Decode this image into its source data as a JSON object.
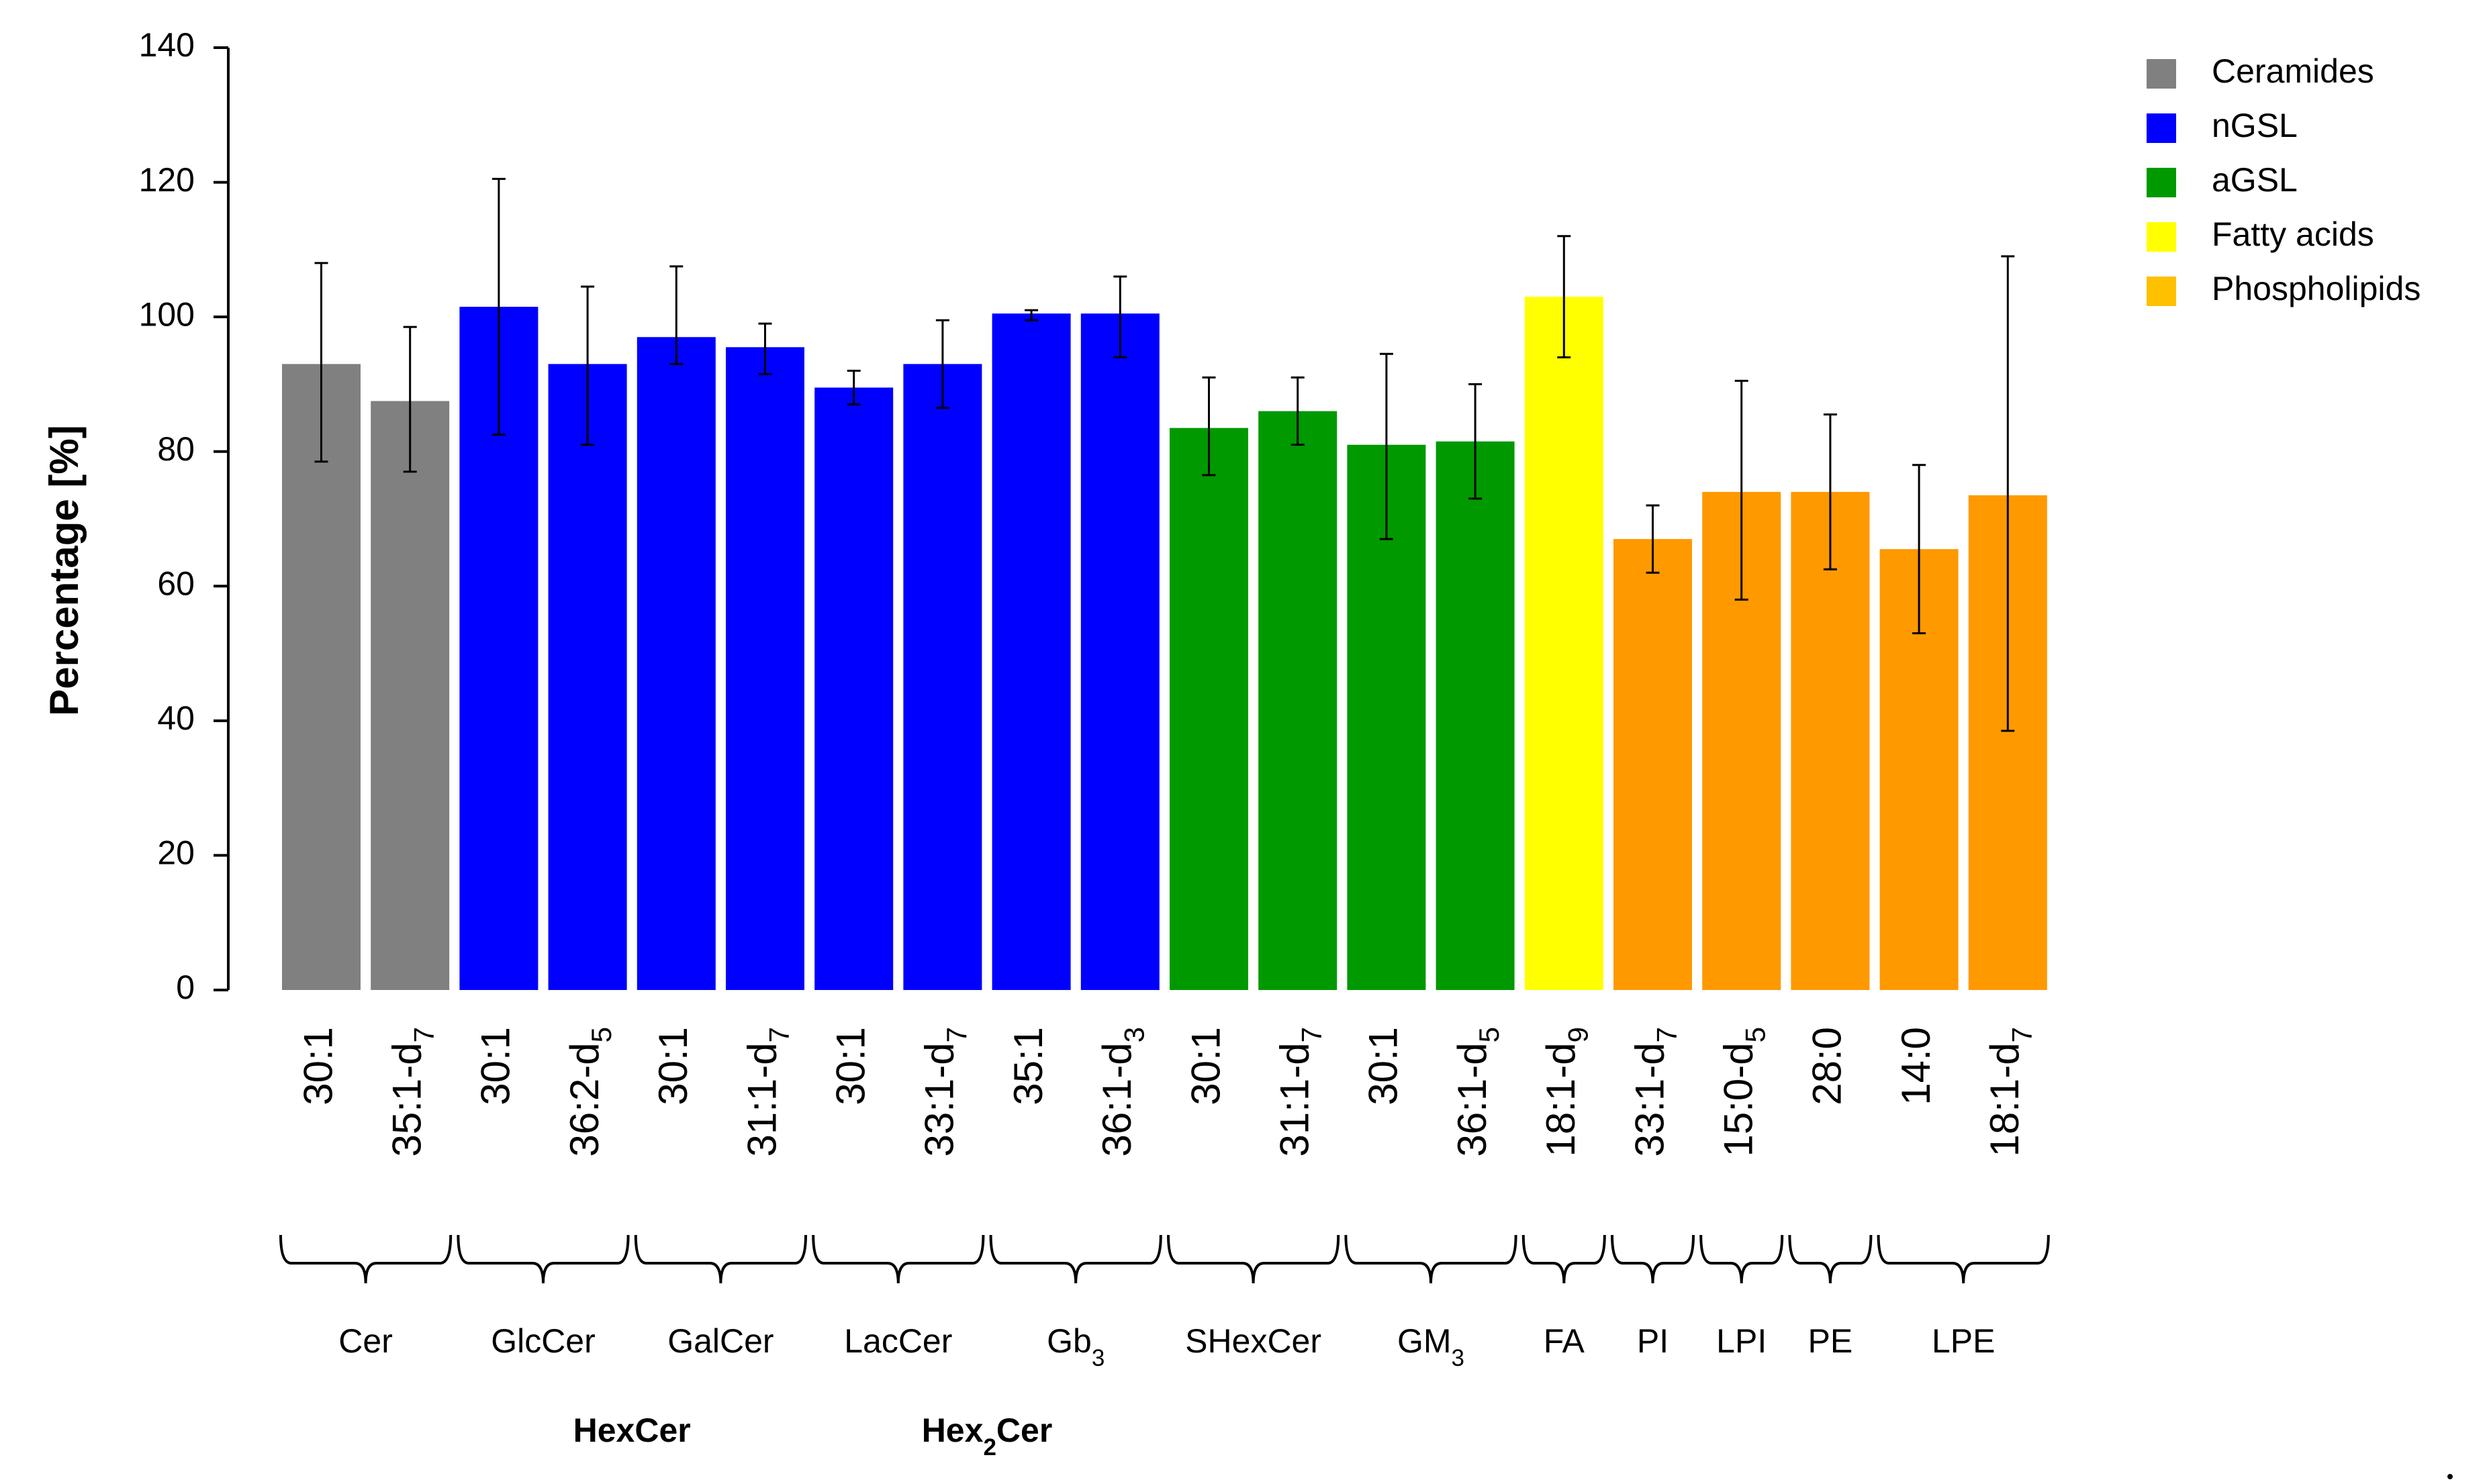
{
  "chart_data": {
    "type": "bar",
    "title": "",
    "xlabel": "",
    "ylabel": "Percentage [%]",
    "ylim": [
      0,
      140
    ],
    "yticks": [
      0,
      20,
      40,
      60,
      80,
      100,
      120,
      140
    ],
    "grid": false,
    "legend_position": "top-right",
    "legend": [
      {
        "label": "Ceramides",
        "color": "#808080"
      },
      {
        "label": "nGSL",
        "color": "#0000FF"
      },
      {
        "label": "aGSL",
        "color": "#009900"
      },
      {
        "label": "Fatty acids",
        "color": "#FFFF00"
      },
      {
        "label": "Phospholipids",
        "color": "#FFC000"
      }
    ],
    "bars": [
      {
        "label": "30:1",
        "sub": "",
        "value": 93,
        "err_low": 78.5,
        "err_high": 108,
        "class": "Ceramides",
        "color": "#808080"
      },
      {
        "label": "35:1-d",
        "sub": "7",
        "value": 87.5,
        "err_low": 77,
        "err_high": 98.5,
        "class": "Ceramides",
        "color": "#808080"
      },
      {
        "label": "30:1",
        "sub": "",
        "value": 101.5,
        "err_low": 82.5,
        "err_high": 120.5,
        "class": "nGSL",
        "color": "#0000FF"
      },
      {
        "label": "36:2-d",
        "sub": "5",
        "value": 93,
        "err_low": 81,
        "err_high": 104.5,
        "class": "nGSL",
        "color": "#0000FF"
      },
      {
        "label": "30:1",
        "sub": "",
        "value": 97,
        "err_low": 93,
        "err_high": 107.5,
        "class": "nGSL",
        "color": "#0000FF"
      },
      {
        "label": "31:1-d",
        "sub": "7",
        "value": 95.5,
        "err_low": 91.5,
        "err_high": 99,
        "class": "nGSL",
        "color": "#0000FF"
      },
      {
        "label": "30:1",
        "sub": "",
        "value": 89.5,
        "err_low": 87,
        "err_high": 92,
        "class": "nGSL",
        "color": "#0000FF"
      },
      {
        "label": "33:1-d",
        "sub": "7",
        "value": 93,
        "err_low": 86.5,
        "err_high": 99.5,
        "class": "nGSL",
        "color": "#0000FF"
      },
      {
        "label": "35:1",
        "sub": "",
        "value": 100.5,
        "err_low": 99.5,
        "err_high": 101,
        "class": "nGSL",
        "color": "#0000FF"
      },
      {
        "label": "36:1-d",
        "sub": "3",
        "value": 100.5,
        "err_low": 94,
        "err_high": 106,
        "class": "nGSL",
        "color": "#0000FF"
      },
      {
        "label": "30:1",
        "sub": "",
        "value": 83.5,
        "err_low": 76.5,
        "err_high": 91,
        "class": "aGSL",
        "color": "#009900"
      },
      {
        "label": "31:1-d",
        "sub": "7",
        "value": 86,
        "err_low": 81,
        "err_high": 91,
        "class": "aGSL",
        "color": "#009900"
      },
      {
        "label": "30:1",
        "sub": "",
        "value": 81,
        "err_low": 67,
        "err_high": 94.5,
        "class": "aGSL",
        "color": "#009900"
      },
      {
        "label": "36:1-d",
        "sub": "5",
        "value": 81.5,
        "err_low": 73,
        "err_high": 90,
        "class": "aGSL",
        "color": "#009900"
      },
      {
        "label": "18:1-d",
        "sub": "9",
        "value": 103,
        "err_low": 94,
        "err_high": 112,
        "class": "Fatty acids",
        "color": "#FFFF00"
      },
      {
        "label": "33:1-d",
        "sub": "7",
        "value": 67,
        "err_low": 62,
        "err_high": 72,
        "class": "Phospholipids",
        "color": "#FF9900"
      },
      {
        "label": "15:0-d",
        "sub": "5",
        "value": 74,
        "err_low": 58,
        "err_high": 90.5,
        "class": "Phospholipids",
        "color": "#FF9900"
      },
      {
        "label": "28:0",
        "sub": "",
        "value": 74,
        "err_low": 62.5,
        "err_high": 85.5,
        "class": "Phospholipids",
        "color": "#FF9900"
      },
      {
        "label": "14:0",
        "sub": "",
        "value": 65.5,
        "err_low": 53,
        "err_high": 78,
        "class": "Phospholipids",
        "color": "#FF9900"
      },
      {
        "label": "18:1-d",
        "sub": "7",
        "value": 73.5,
        "err_low": 38.5,
        "err_high": 109,
        "class": "Phospholipids",
        "color": "#FF9900"
      }
    ],
    "groups": [
      {
        "label": "Cer",
        "sub": "",
        "bars": [
          0,
          1
        ]
      },
      {
        "label": "GlcCer",
        "sub": "",
        "bars": [
          2,
          3
        ]
      },
      {
        "label": "GalCer",
        "sub": "",
        "bars": [
          4,
          5
        ]
      },
      {
        "label": "LacCer",
        "sub": "",
        "bars": [
          6,
          7
        ]
      },
      {
        "label": "Gb",
        "sub": "3",
        "bars": [
          8,
          9
        ]
      },
      {
        "label": "SHexCer",
        "sub": "",
        "bars": [
          10,
          11
        ]
      },
      {
        "label": "GM",
        "sub": "3",
        "bars": [
          12,
          13
        ]
      },
      {
        "label": "FA",
        "sub": "",
        "bars": [
          14,
          14
        ]
      },
      {
        "label": "PI",
        "sub": "",
        "bars": [
          15,
          15
        ]
      },
      {
        "label": "LPI",
        "sub": "",
        "bars": [
          16,
          16
        ]
      },
      {
        "label": "PE",
        "sub": "",
        "bars": [
          17,
          17
        ]
      },
      {
        "label": "LPE",
        "sub": "",
        "bars": [
          18,
          19
        ]
      }
    ],
    "supergroups": [
      {
        "label": "HexCer",
        "sub": "",
        "post": "",
        "groups": [
          1,
          2
        ]
      },
      {
        "label": "Hex",
        "sub": "2",
        "post": "Cer",
        "groups": [
          3,
          4
        ]
      }
    ]
  }
}
